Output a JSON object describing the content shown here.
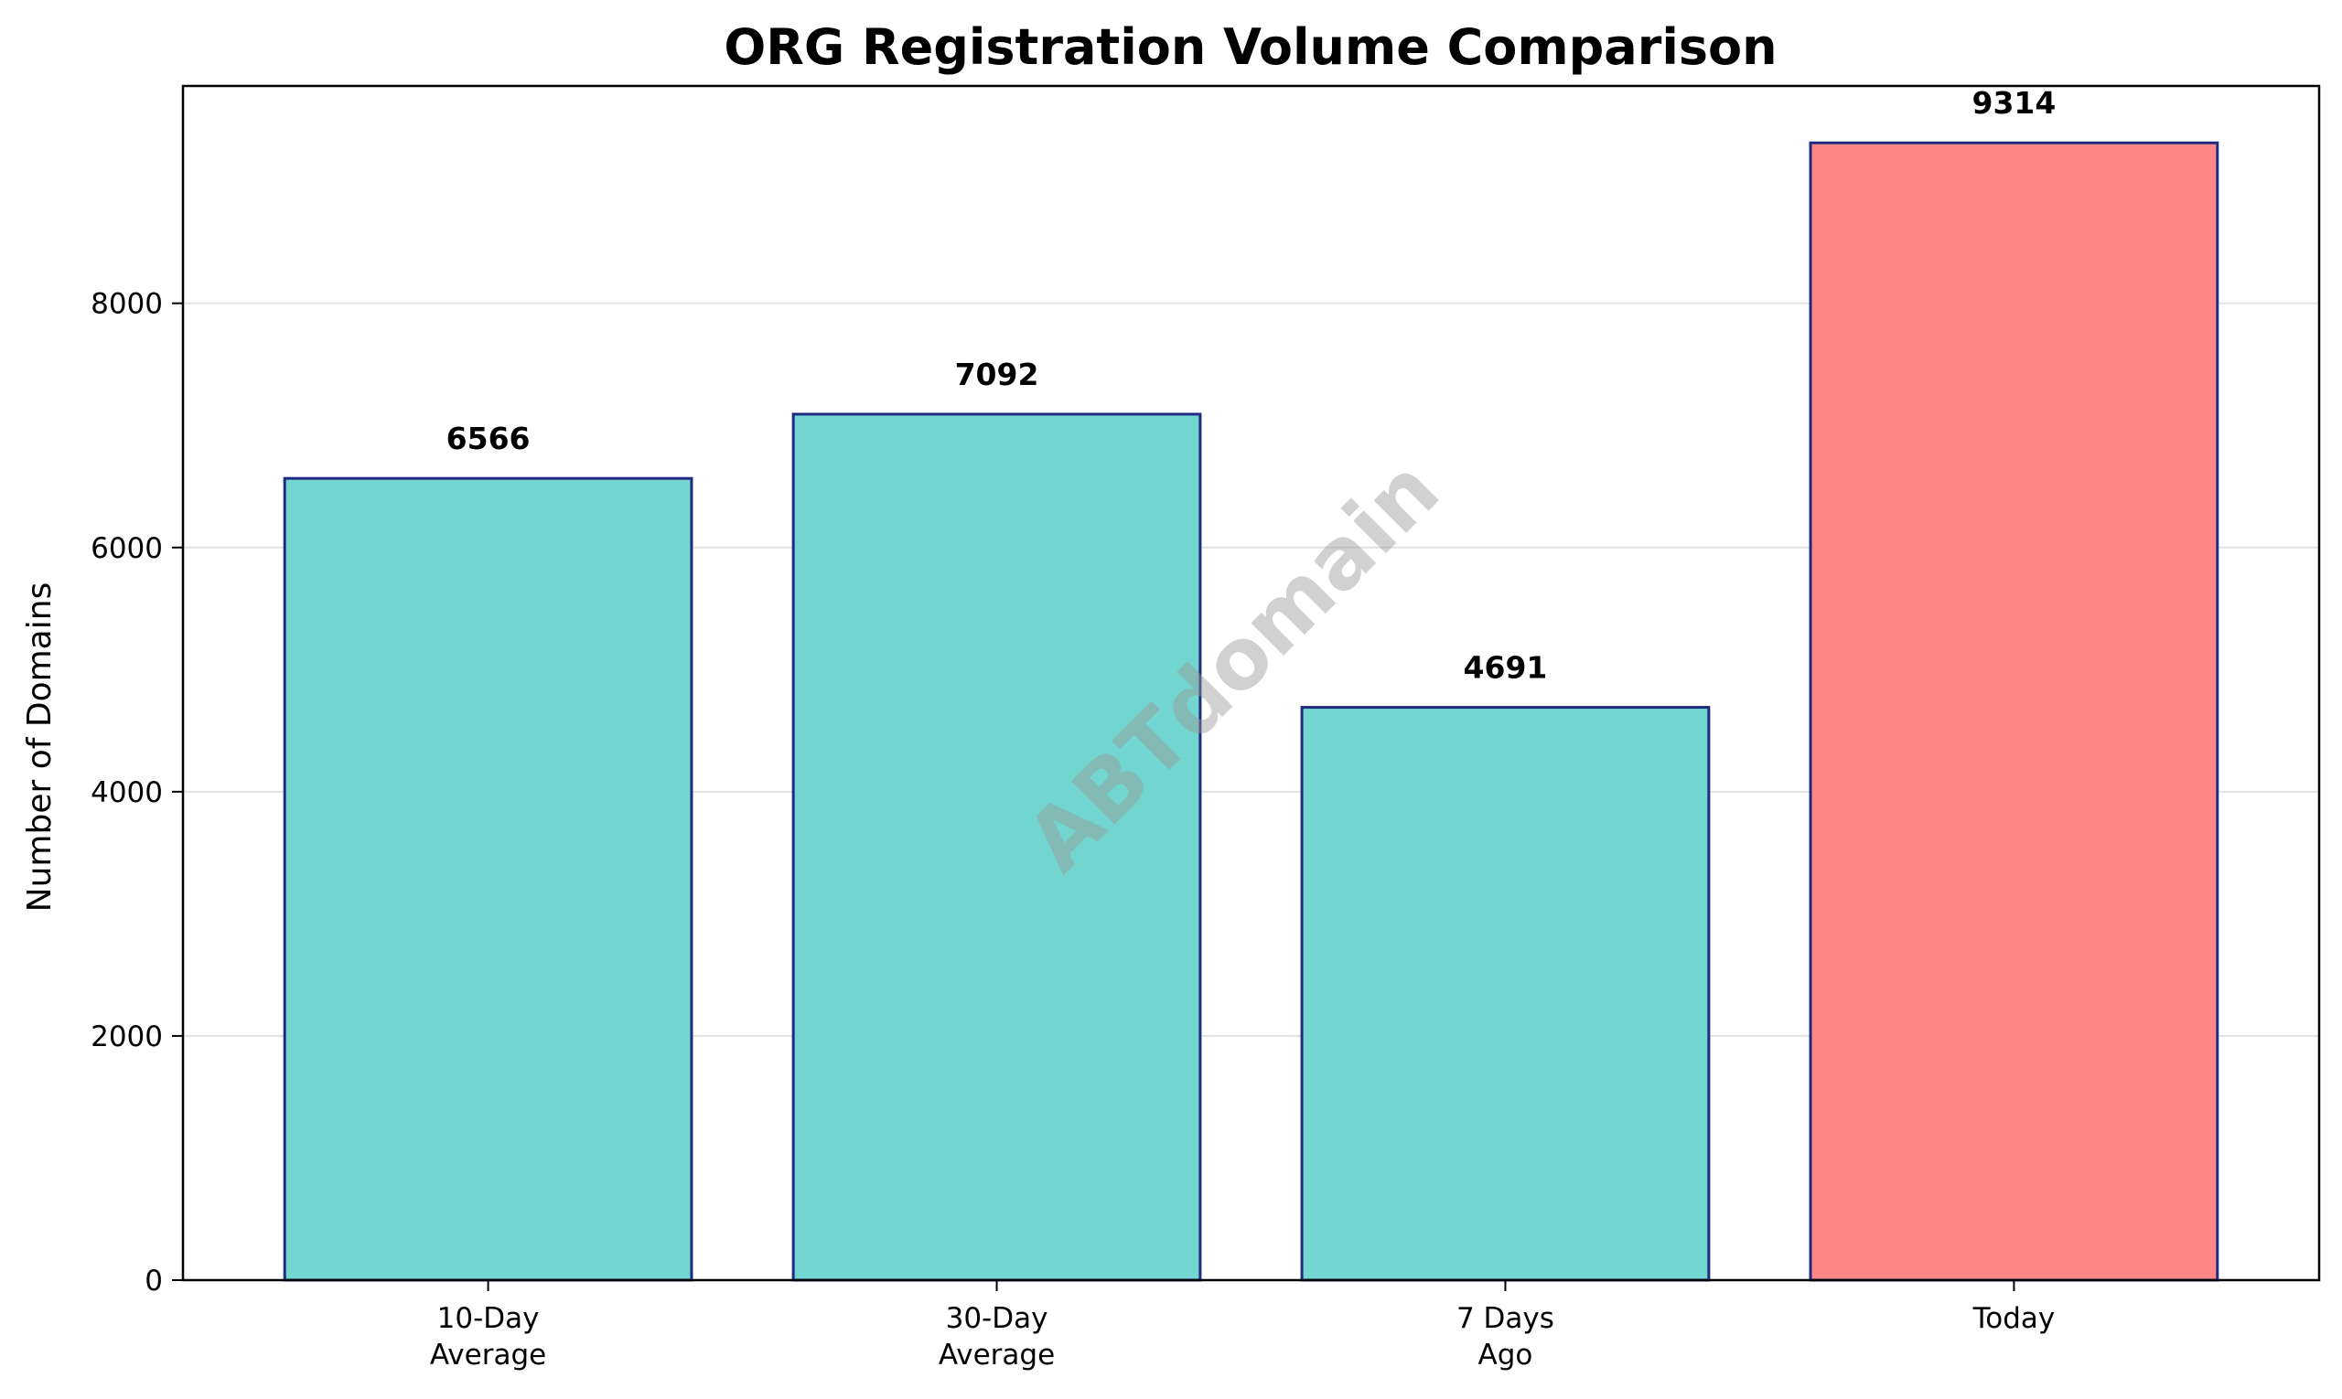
{
  "chart_data": {
    "type": "bar",
    "title": "ORG Registration Volume Comparison",
    "xlabel": "",
    "ylabel": "Number of Domains",
    "categories": [
      [
        "10-Day",
        "Average"
      ],
      [
        "30-Day",
        "Average"
      ],
      [
        "7 Days",
        "Ago"
      ],
      [
        "Today"
      ]
    ],
    "values": [
      6566,
      7092,
      4691,
      9314
    ],
    "data_labels": [
      "6566",
      "7092",
      "4691",
      "9314"
    ],
    "bar_colors": [
      "#72d5cf",
      "#72d5cf",
      "#72d5cf",
      "#ff8886"
    ],
    "edge_color": "#1f2a80",
    "ylim": [
      0,
      9780
    ],
    "yticks": [
      0,
      2000,
      4000,
      6000,
      8000
    ],
    "ytick_labels": [
      "0",
      "2000",
      "4000",
      "6000",
      "8000"
    ],
    "grid": "y",
    "legend": "none",
    "watermark": "ABTdomain"
  }
}
